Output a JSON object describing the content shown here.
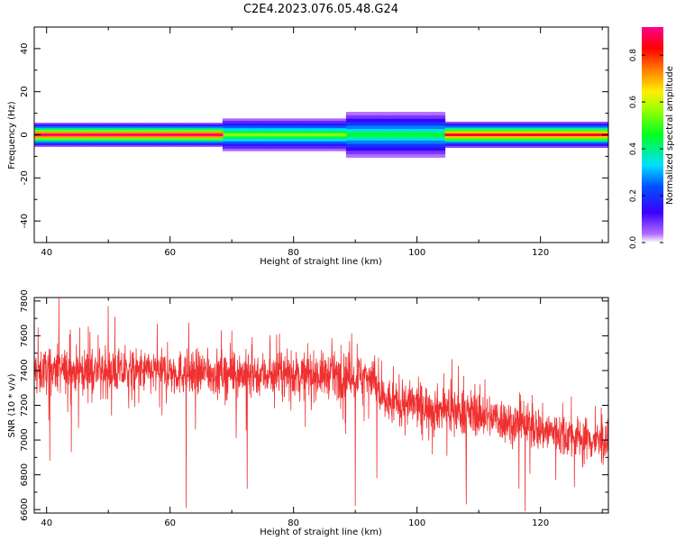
{
  "title": "C2E4.2023.076.05.48.G24",
  "chart_data": [
    {
      "type": "heatmap",
      "xlabel": "Height of straight line (km)",
      "ylabel": "Frequency (Hz)",
      "xlim": [
        38,
        131
      ],
      "ylim": [
        -50,
        50
      ],
      "x_ticks": [
        40,
        60,
        80,
        100,
        120
      ],
      "y_ticks": [
        -40,
        -20,
        0,
        20,
        40
      ],
      "colorbar": {
        "label": "Normalized spectral amplitude",
        "range": [
          0,
          0.92
        ],
        "ticks": [
          0.0,
          0.2,
          0.4,
          0.6,
          0.8
        ]
      },
      "ridge": {
        "frequency": 0,
        "segments": [
          {
            "x_start": 38,
            "x_end": 68,
            "peak": 0.9,
            "half_width_hz": 2.2
          },
          {
            "x_start": 68,
            "x_end": 88,
            "peak": 0.55,
            "half_width_hz": 3.0
          },
          {
            "x_start": 88,
            "x_end": 104,
            "peak": 0.45,
            "half_width_hz": 4.2
          },
          {
            "x_start": 104,
            "x_end": 131,
            "peak": 0.85,
            "half_width_hz": 2.4
          }
        ]
      },
      "grid": false
    },
    {
      "type": "line",
      "xlabel": "Height of straight line (km)",
      "ylabel": "SNR (10 * v/v)",
      "xlim": [
        38,
        131
      ],
      "ylim": [
        6580,
        7820
      ],
      "x_ticks": [
        40,
        60,
        80,
        100,
        120
      ],
      "y_ticks": [
        6600,
        6800,
        7000,
        7200,
        7400,
        7600,
        7800
      ],
      "series": [
        {
          "color": "#f03030",
          "trend": [
            {
              "x": 38,
              "y": 7400
            },
            {
              "x": 60,
              "y": 7390
            },
            {
              "x": 75,
              "y": 7380
            },
            {
              "x": 93,
              "y": 7370
            },
            {
              "x": 94,
              "y": 7230
            },
            {
              "x": 110,
              "y": 7150
            },
            {
              "x": 120,
              "y": 7060
            },
            {
              "x": 131,
              "y": 6980
            }
          ],
          "noise_amplitude": 90,
          "spikes": [
            {
              "x": 40.5,
              "y": 6880
            },
            {
              "x": 42.0,
              "y": 7820
            },
            {
              "x": 44.0,
              "y": 6930
            },
            {
              "x": 62.6,
              "y": 6610
            },
            {
              "x": 72.5,
              "y": 6720
            },
            {
              "x": 90.0,
              "y": 6620
            },
            {
              "x": 93.5,
              "y": 6780
            },
            {
              "x": 108.0,
              "y": 6630
            },
            {
              "x": 116.5,
              "y": 6720
            },
            {
              "x": 117.5,
              "y": 6590
            }
          ],
          "grid": false
        }
      ]
    }
  ]
}
